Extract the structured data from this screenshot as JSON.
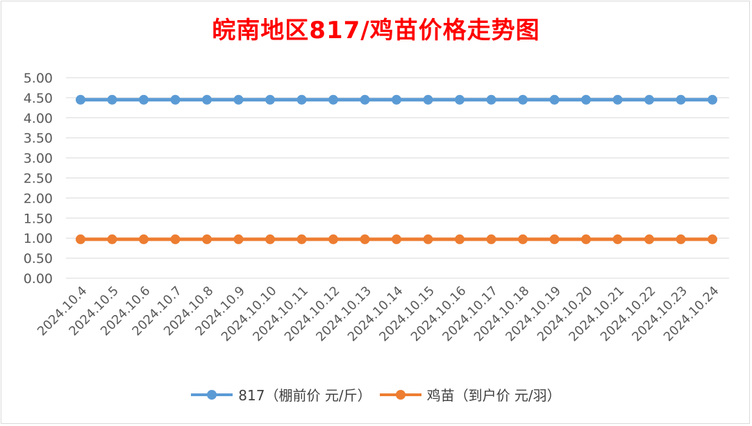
{
  "chart_data": {
    "type": "line",
    "title": "皖南地区817/鸡苗价格走势图",
    "categories": [
      "2024.10.4",
      "2024.10.5",
      "2024.10.6",
      "2024.10.7",
      "2024.10.8",
      "2024.10.9",
      "2024.10.10",
      "2024.10.11",
      "2024.10.12",
      "2024.10.13",
      "2024.10.14",
      "2024.10.15",
      "2024.10.16",
      "2024.10.17",
      "2024.10.18",
      "2024.10.19",
      "2024.10.20",
      "2024.10.21",
      "2024.10.22",
      "2024.10.23",
      "2024.10.24"
    ],
    "series": [
      {
        "name": "817（棚前价 元/斤）",
        "color": "#5b9bd5",
        "values": [
          4.45,
          4.45,
          4.45,
          4.45,
          4.45,
          4.45,
          4.45,
          4.45,
          4.45,
          4.45,
          4.45,
          4.45,
          4.45,
          4.45,
          4.45,
          4.45,
          4.45,
          4.45,
          4.45,
          4.45,
          4.45
        ]
      },
      {
        "name": "鸡苗（到户价 元/羽）",
        "color": "#ed7d31",
        "values": [
          0.97,
          0.97,
          0.97,
          0.97,
          0.97,
          0.97,
          0.97,
          0.97,
          0.97,
          0.97,
          0.97,
          0.97,
          0.97,
          0.97,
          0.97,
          0.97,
          0.97,
          0.97,
          0.97,
          0.97,
          0.97
        ]
      }
    ],
    "ylim": [
      0,
      5
    ],
    "yticks": [
      "0.00",
      "0.50",
      "1.00",
      "1.50",
      "2.00",
      "2.50",
      "3.00",
      "3.50",
      "4.00",
      "4.50",
      "5.00"
    ],
    "grid": true,
    "legend_position": "bottom",
    "title_color": "#ff0000"
  }
}
